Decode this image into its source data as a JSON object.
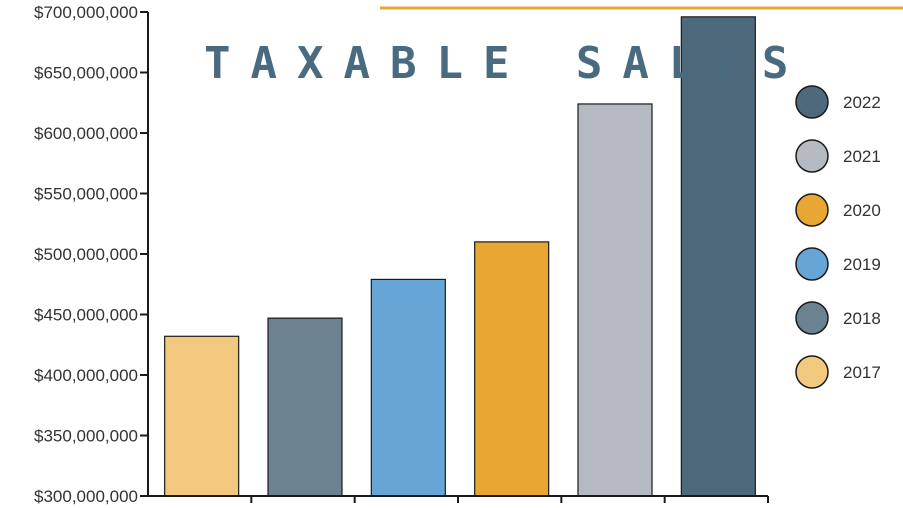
{
  "chart_data": {
    "type": "bar",
    "title": "TAXABLE SALES",
    "xlabel": "",
    "ylabel": "",
    "ylim": [
      300000000,
      700000000
    ],
    "yticks": [
      {
        "value": 700000000,
        "label": "$700,000,000"
      },
      {
        "value": 650000000,
        "label": "$650,000,000"
      },
      {
        "value": 600000000,
        "label": "$600,000,000"
      },
      {
        "value": 550000000,
        "label": "$550,000,000"
      },
      {
        "value": 500000000,
        "label": "$500,000,000"
      },
      {
        "value": 450000000,
        "label": "$450,000,000"
      },
      {
        "value": 400000000,
        "label": "$400,000,000"
      },
      {
        "value": 350000000,
        "label": "$350,000,000"
      },
      {
        "value": 300000000,
        "label": "$300,000,000"
      }
    ],
    "categories": [
      "2017",
      "2018",
      "2019",
      "2020",
      "2021",
      "2022"
    ],
    "values": [
      432000000,
      447000000,
      479000000,
      510000000,
      624000000,
      696000000
    ],
    "colors": [
      "#f2c77e",
      "#6b8290",
      "#66a5d6",
      "#e8a733",
      "#b5b9c2",
      "#4f697c"
    ],
    "legend_position": "right",
    "legend": [
      {
        "label": "2022",
        "color": "#4f697c"
      },
      {
        "label": "2021",
        "color": "#b5b9c2"
      },
      {
        "label": "2020",
        "color": "#e8a733"
      },
      {
        "label": "2019",
        "color": "#66a5d6"
      },
      {
        "label": "2018",
        "color": "#6b8290"
      },
      {
        "label": "2017",
        "color": "#f2c77e"
      }
    ],
    "grid": false
  },
  "accent_line_color": "#e8a733"
}
